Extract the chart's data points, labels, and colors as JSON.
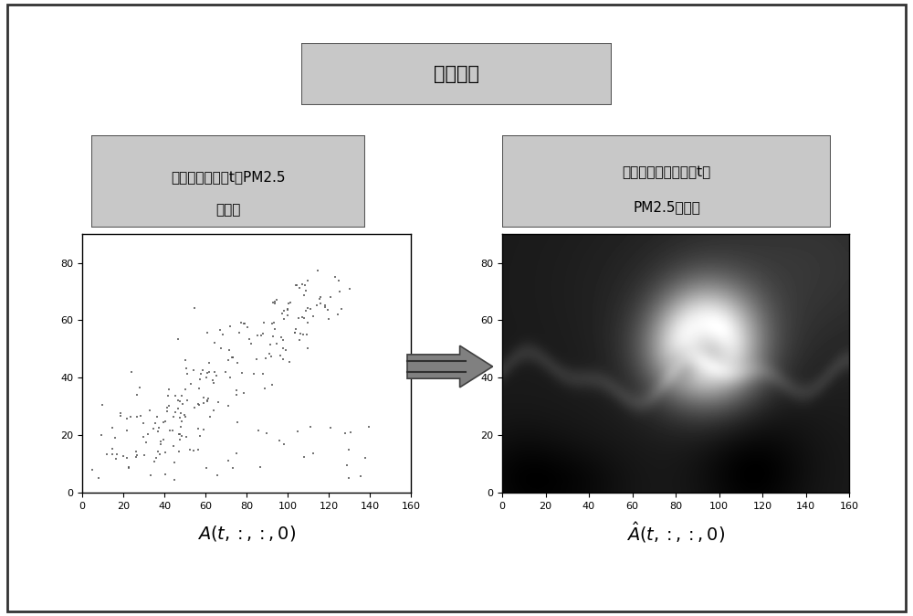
{
  "title_text": "张量补全",
  "left_label_line1": "补全之前的时刻t的PM2.5",
  "left_label_line2": "面数据",
  "right_label_line1": "张量补全之后的时刻t的",
  "right_label_line2": "PM2.5面数据",
  "left_xlabel": "A(t,:,:,0)",
  "right_xlabel": "\\hat{A}(t,:,:,0)",
  "scatter_xlim": [
    0,
    160
  ],
  "scatter_ylim": [
    0,
    90
  ],
  "scatter_xticks": [
    0,
    20,
    40,
    60,
    80,
    100,
    120,
    140,
    160
  ],
  "scatter_yticks": [
    0,
    20,
    40,
    60,
    80
  ],
  "background_color": "#ffffff",
  "box_facecolor": "#c8c8c8",
  "scatter_marker_color": "#555555",
  "title_fontsize": 15,
  "label_fontsize": 11,
  "xlabel_fontsize": 14
}
